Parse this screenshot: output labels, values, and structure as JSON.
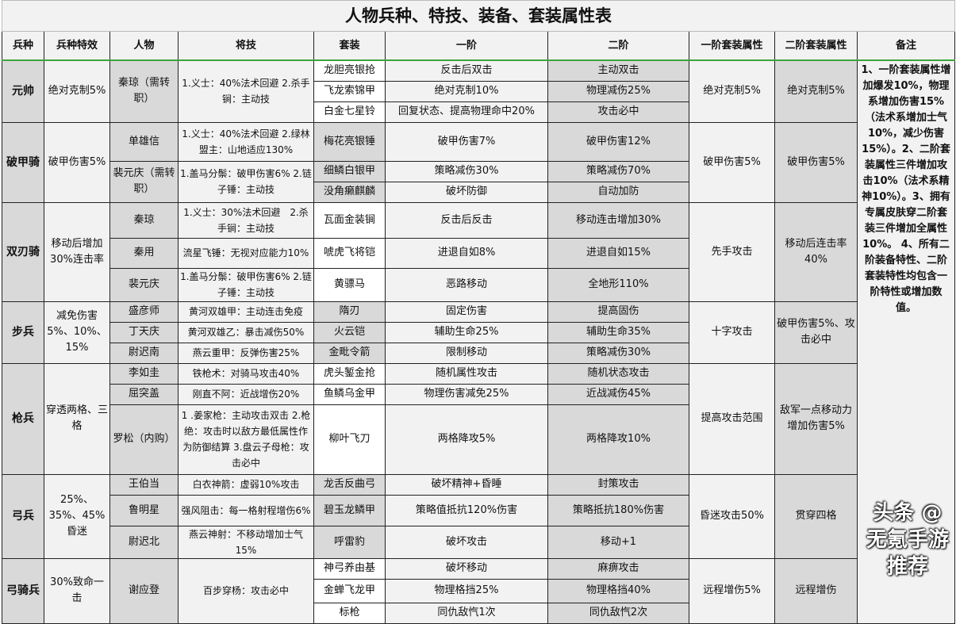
{
  "title": "人物兵种、特技、装备、套装属性表",
  "headers": [
    "兵种",
    "兵种特效",
    "人物",
    "将技",
    "套装",
    "一阶",
    "二阶",
    "一阶套装属性",
    "二阶套装属性",
    "备注"
  ],
  "note": "1、一阶套装属性增加爆发10%，物理系增加伤害15%（法术系增加士气10%，减少伤害15%）。2、二阶套装属性三件增加攻击10%（法术系精神10%）。3、拥有专属皮肤穿二阶套装三件增加全属性10%。 4、所有二阶装备特性、二阶套装特性均包含一阶特性或增加数值。",
  "watermark": "头条 @无氪手游推荐",
  "groups": [
    {
      "type": "元帅",
      "effect": "绝对克制5%",
      "set_bg": "w",
      "tier1_set": "绝对克制5%",
      "tier2_set": "绝对克制5%",
      "people": [
        {
          "name": "秦琼（需转职）",
          "skill": "1.义士：40%法术回避 2.杀手锏：主动技",
          "span": 3
        }
      ],
      "sets": [
        {
          "name": "龙胆亮银抢",
          "t1": "反击后双击",
          "t2": "主动双击",
          "h": 26
        },
        {
          "name": "飞龙索锦甲",
          "t1": "绝对克制10%",
          "t2": "物理减伤25%",
          "h": 26
        },
        {
          "name": "白金七星铃",
          "t1": "回复状态、提高物理命中20%",
          "t2": "攻击必中",
          "h": 26
        }
      ]
    },
    {
      "type": "破甲骑",
      "effect": "破甲伤害5%",
      "set_bg": "g",
      "tier1_set": "破甲伤害5%",
      "tier2_set": "破甲伤害5%",
      "people": [
        {
          "name": "单雄信",
          "skill": "1.义士：40%法术回避 2.绿林盟主：山地适应130%",
          "span": 1
        },
        {
          "name": "裴元庆（需转职）",
          "skill": "1.盖马分鬃：破甲伤害6% 2.链子锤：主动技",
          "span": 2
        }
      ],
      "sets": [
        {
          "name": "梅花亮银锤",
          "t1": "破甲伤害7%",
          "t2": "破甲伤害12%",
          "h": 49
        },
        {
          "name": "细鳞白银甲",
          "t1": "策略减伤30%",
          "t2": "策略减伤70%",
          "h": 26
        },
        {
          "name": "没角癞麒麟",
          "t1": "破坏防御",
          "t2": "自动加防",
          "h": 26
        }
      ]
    },
    {
      "type": "双刃骑",
      "effect": "移动后增加30%连击率",
      "set_bg": "w",
      "tier1_set": "先手攻击",
      "tier2_set": "移动后连击率40%",
      "people": [
        {
          "name": "秦琼",
          "skill": "1.义士：30%法术回避　2.杀手锏：主动技",
          "span": 1
        },
        {
          "name": "秦用",
          "skill": "流星飞锤：无视对应能力10%",
          "span": 1
        },
        {
          "name": "裴元庆",
          "skill": "1.盖马分鬃：破甲伤害6% 2.链子锤：主动技",
          "span": 1
        }
      ],
      "sets": [
        {
          "name": "瓦面金装锏",
          "t1": "反击后反击",
          "t2": "移动连击增加30%",
          "h": 45
        },
        {
          "name": "唬虎飞将铠",
          "t1": "进退自如8%",
          "t2": "进退自如15%",
          "h": 38
        },
        {
          "name": "黄骠马",
          "t1": "恶路移动",
          "t2": "全地形110%",
          "h": 42
        }
      ]
    },
    {
      "type": "步兵",
      "effect": "减免伤害5%、10%、15%",
      "set_bg": "g",
      "tier1_set": "十字攻击",
      "tier2_set": "破甲伤害5%、攻击必中",
      "people": [
        {
          "name": "盛彦师",
          "skill": "黄河双雄甲：主动连击免疫",
          "span": 1
        },
        {
          "name": "丁天庆",
          "skill": "黄河双雄乙：暴击减伤50%",
          "span": 1
        },
        {
          "name": "尉迟南",
          "skill": "燕云重甲：反弹伤害25%",
          "span": 1
        }
      ],
      "sets": [
        {
          "name": "隋刃",
          "t1": "固定伤害",
          "t2": "提高固伤",
          "h": 26
        },
        {
          "name": "火云铠",
          "t1": "辅助生命25%",
          "t2": "辅助生命35%",
          "h": 26
        },
        {
          "name": "金毗令箭",
          "t1": "限制移动",
          "t2": "策略减伤30%",
          "h": 26
        }
      ]
    },
    {
      "type": "枪兵",
      "effect": "穿透两格、三格",
      "set_bg": "w",
      "tier1_set": "提高攻击范围",
      "tier2_set": "敌军一点移动力增加伤害5%",
      "people": [
        {
          "name": "李如圭",
          "skill": "铁枪术：对骑马攻击40%",
          "span": 1
        },
        {
          "name": "屈突盖",
          "skill": "刚直不阿：近战增伤20%",
          "span": 1
        },
        {
          "name": "罗松（内购）",
          "skill": "1 .姜家枪：主动攻击双击 2.枪绝：攻击时以敌方最低属性作为防御结算 3.盘云子母枪：攻击必中",
          "span": 1
        }
      ],
      "sets": [
        {
          "name": "虎头錾金抢",
          "t1": "随机属性攻击",
          "t2": "随机状态攻击",
          "h": 26
        },
        {
          "name": "鱼鳞乌金甲",
          "t1": "物理伤害减免25%",
          "t2": "近战减伤45%",
          "h": 26
        },
        {
          "name": "柳叶飞刀",
          "t1": "两格降攻5%",
          "t2": "两格降攻10%",
          "h": 88
        }
      ]
    },
    {
      "type": "弓兵",
      "effect": "25%、35%、45%昏迷",
      "set_bg": "g",
      "tier1_set": "昏迷攻击50%",
      "tier2_set": "贯穿四格",
      "people": [
        {
          "name": "王伯当",
          "skill": "白衣神箭：虚弱10%攻击",
          "span": 1
        },
        {
          "name": "鲁明星",
          "skill": "强风阻击：每一格射程增伤6%",
          "span": 1
        },
        {
          "name": "尉迟北",
          "skill": "燕云神射：不移动增加士气15%",
          "span": 1
        }
      ],
      "sets": [
        {
          "name": "龙舌反曲弓",
          "t1": "破坏精神+昏睡",
          "t2": "封策攻击",
          "h": 26
        },
        {
          "name": "碧玉龙鳞甲",
          "t1": "策略值抵抗120%伤害",
          "t2": "策略抵抗180%伤害",
          "h": 39
        },
        {
          "name": "呼雷豹",
          "t1": "破坏攻击",
          "t2": "移动+1",
          "h": 40
        }
      ]
    },
    {
      "type": "弓骑兵",
      "effect": "30%致命一击",
      "set_bg": "w",
      "tier1_set": "远程增伤5%",
      "tier2_set": "远程增伤",
      "people": [
        {
          "name": "谢应登",
          "skill": "百步穿杨：攻击必中",
          "span": 3
        }
      ],
      "sets": [
        {
          "name": "神弓养由基",
          "t1": "破坏移动",
          "t2": "麻痹攻击",
          "h": 26
        },
        {
          "name": "金蝉飞龙甲",
          "t1": "物理格挡25%",
          "t2": "物理格挡40%",
          "h": 30
        },
        {
          "name": "标枪",
          "t1": "同仇敌忾1次",
          "t2": "同仇敌忾2次",
          "h": 26
        }
      ]
    }
  ]
}
